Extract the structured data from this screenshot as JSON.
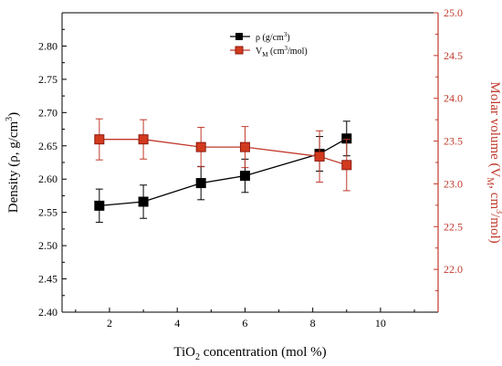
{
  "chart_data": {
    "type": "line",
    "xlabel": {
      "pre": "TiO",
      "sub": "2",
      "post": " concentration (mol %)"
    },
    "ylabel_left": {
      "pre": "Density (ρ, g/cm",
      "sup": "3",
      "post": ")"
    },
    "ylabel_right": {
      "pre": "Molar volume (V",
      "sub": "M",
      "mid": ", cm",
      "sup": "3",
      "post": "/mol)"
    },
    "x_range": [
      0.6,
      11.7
    ],
    "x_ticks": [
      2,
      4,
      6,
      8,
      10
    ],
    "y_left_range": [
      2.4,
      2.85
    ],
    "y_left_ticks": [
      "2.40",
      "2.45",
      "2.50",
      "2.55",
      "2.60",
      "2.65",
      "2.70",
      "2.75",
      "2.80"
    ],
    "y_right_range": [
      21.5,
      25.0
    ],
    "y_right_ticks": [
      "22.0",
      "22.5",
      "23.0",
      "23.5",
      "24.0",
      "24.5",
      "25.0"
    ],
    "grid": false,
    "legend_position": "top-center",
    "series": [
      {
        "name": {
          "pre": "ρ (g/cm",
          "sup": "3",
          "post": ")"
        },
        "axis": "left",
        "color": "#000000",
        "x": [
          1.7,
          3.0,
          4.7,
          6.0,
          8.2,
          9.0
        ],
        "y": [
          2.56,
          2.566,
          2.594,
          2.605,
          2.638,
          2.661
        ],
        "err": [
          0.025,
          0.025,
          0.025,
          0.025,
          0.026,
          0.026
        ]
      },
      {
        "name": {
          "pre": "V",
          "sub": "M",
          "post": " (cm",
          "sup": "3",
          "post2": "/mol)"
        },
        "axis": "right",
        "color": "#c0392b",
        "x": [
          1.7,
          3.0,
          4.7,
          6.0,
          8.2,
          9.0
        ],
        "y": [
          23.52,
          23.52,
          23.43,
          23.43,
          23.32,
          23.22
        ],
        "err": [
          0.24,
          0.23,
          0.23,
          0.24,
          0.3,
          0.3
        ]
      }
    ]
  }
}
